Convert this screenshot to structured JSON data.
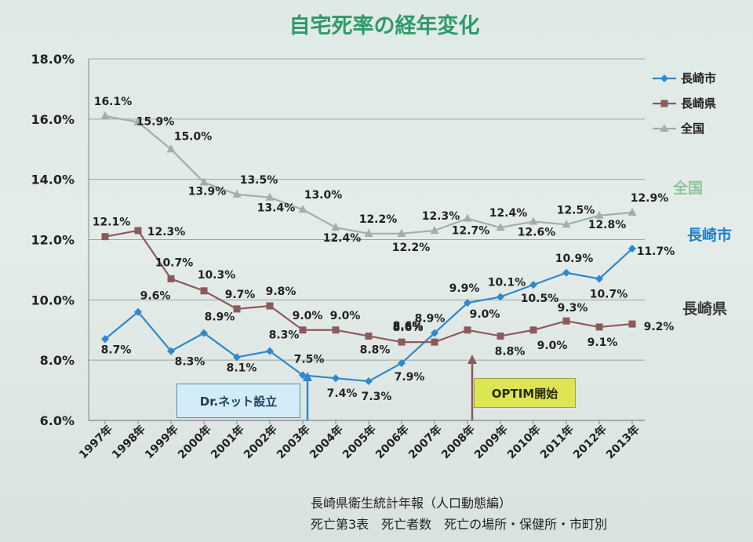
{
  "chart_data": {
    "type": "line",
    "title": "自宅死率の経年変化",
    "categories": [
      "1997年",
      "1998年",
      "1999年",
      "2000年",
      "2001年",
      "2002年",
      "2003年",
      "2004年",
      "2005年",
      "2006年",
      "2007年",
      "2008年",
      "2009年",
      "2010年",
      "2011年",
      "2012年",
      "2013年"
    ],
    "y_ticks": [
      "6.0%",
      "8.0%",
      "10.0%",
      "12.0%",
      "14.0%",
      "16.0%",
      "18.0%"
    ],
    "ylim": [
      6,
      18
    ],
    "grid": "horizontal",
    "legend_position": "top-right",
    "series": [
      {
        "name": "長崎市",
        "color": "#2e88cc",
        "marker": "diamond",
        "end_label": "長崎市",
        "values": [
          8.7,
          9.6,
          8.3,
          8.9,
          8.1,
          8.3,
          7.5,
          7.4,
          7.3,
          7.9,
          8.9,
          9.9,
          10.1,
          10.5,
          10.9,
          10.7,
          11.7
        ],
        "labels": [
          "8.7%",
          "9.6%",
          "8.3%",
          "8.9%",
          "8.1%",
          "8.3%",
          "7.5%",
          "7.4%",
          "7.3%",
          "7.9%",
          "8.9%",
          "9.9%",
          "10.1%",
          "10.5%",
          "10.9%",
          "10.7%",
          "11.7%"
        ]
      },
      {
        "name": "長崎県",
        "color": "#8b5a5e",
        "marker": "square",
        "end_label": "長崎県",
        "values": [
          12.1,
          12.3,
          10.7,
          10.3,
          9.7,
          9.8,
          9.0,
          9.0,
          8.8,
          8.6,
          8.6,
          9.0,
          8.8,
          9.0,
          9.3,
          9.1,
          9.2
        ],
        "labels": [
          "12.1%",
          "12.3%",
          "10.7%",
          "10.3%",
          "9.7%",
          "9.8%",
          "9.0%",
          "9.0%",
          "8.8%",
          "8.6%",
          "8.6%",
          "9.0%",
          "8.8%",
          "9.0%",
          "9.3%",
          "9.1%",
          "9.2%"
        ]
      },
      {
        "name": "全国",
        "color": "#9fb0a4",
        "marker": "triangle",
        "end_label": "全国",
        "values": [
          16.1,
          15.9,
          15.0,
          13.9,
          13.5,
          13.4,
          13.0,
          12.4,
          12.2,
          12.2,
          12.3,
          12.7,
          12.4,
          12.6,
          12.5,
          12.8,
          12.9
        ],
        "labels": [
          "16.1%",
          "15.9%",
          "15.0%",
          "13.9%",
          "13.5%",
          "13.4%",
          "13.0%",
          "12.4%",
          "12.2%",
          "12.2%",
          "12.3%",
          "12.7%",
          "12.4%",
          "12.6%",
          "12.5%",
          "12.8%",
          "12.9%"
        ]
      }
    ],
    "annotations": [
      {
        "text": "Dr.ネット設立",
        "year": "2003年",
        "arrow_color": "#2e88cc"
      },
      {
        "text": "OPTIM開始",
        "year": "2008年",
        "arrow_color": "#8b5a5e"
      }
    ]
  },
  "source": {
    "line1": "長崎県衛生統計年報（人口動態編）",
    "line2": "死亡第3表　死亡者数　死亡の場所・保健所・市町別"
  }
}
